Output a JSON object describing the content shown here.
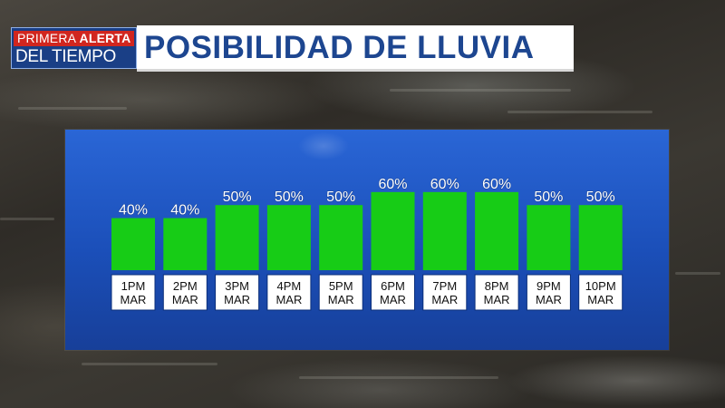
{
  "header": {
    "bug_line1_red_a": "PRIMERA",
    "bug_line1_red_b": "ALERTA",
    "bug_line2": "DEL TIEMPO",
    "title": "POSIBILIDAD DE LLUVIA"
  },
  "colors": {
    "bar": "#17cc16",
    "panel": "#1f55c4",
    "title_text": "#1d4690",
    "bug_blue": "#1a3f86",
    "bug_red": "#d1261f"
  },
  "chart_data": {
    "type": "bar",
    "title": "POSIBILIDAD DE LLUVIA",
    "categories": [
      [
        "1PM",
        "MAR"
      ],
      [
        "2PM",
        "MAR"
      ],
      [
        "3PM",
        "MAR"
      ],
      [
        "4PM",
        "MAR"
      ],
      [
        "5PM",
        "MAR"
      ],
      [
        "6PM",
        "MAR"
      ],
      [
        "7PM",
        "MAR"
      ],
      [
        "8PM",
        "MAR"
      ],
      [
        "9PM",
        "MAR"
      ],
      [
        "10PM",
        "MAR"
      ]
    ],
    "values": [
      40,
      40,
      50,
      50,
      50,
      60,
      60,
      60,
      50,
      50
    ],
    "value_labels": [
      "40%",
      "40%",
      "50%",
      "50%",
      "50%",
      "60%",
      "60%",
      "60%",
      "50%",
      "50%"
    ],
    "unit": "%",
    "grid": false,
    "legend": "none"
  }
}
